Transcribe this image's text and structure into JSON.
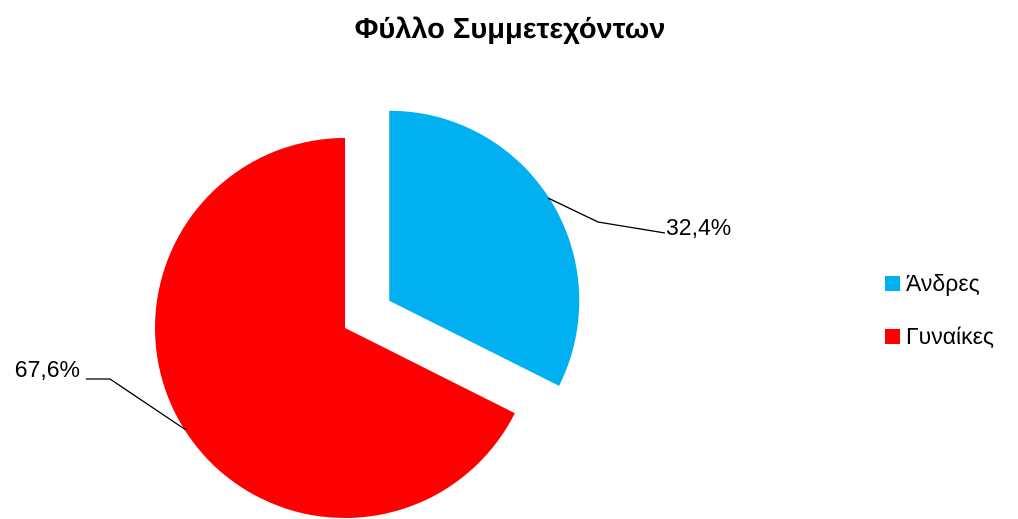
{
  "chart_data": {
    "type": "pie",
    "title": "Φύλλο Συμμετεχόντων",
    "categories": [
      "Άνδρες",
      "Γυναίκες"
    ],
    "values": [
      32.4,
      67.6
    ],
    "data_labels": [
      "32,4%",
      "67,6%"
    ],
    "colors": [
      "#00B0F0",
      "#FF0000"
    ],
    "exploded": [
      true,
      false
    ],
    "legend_position": "right"
  }
}
